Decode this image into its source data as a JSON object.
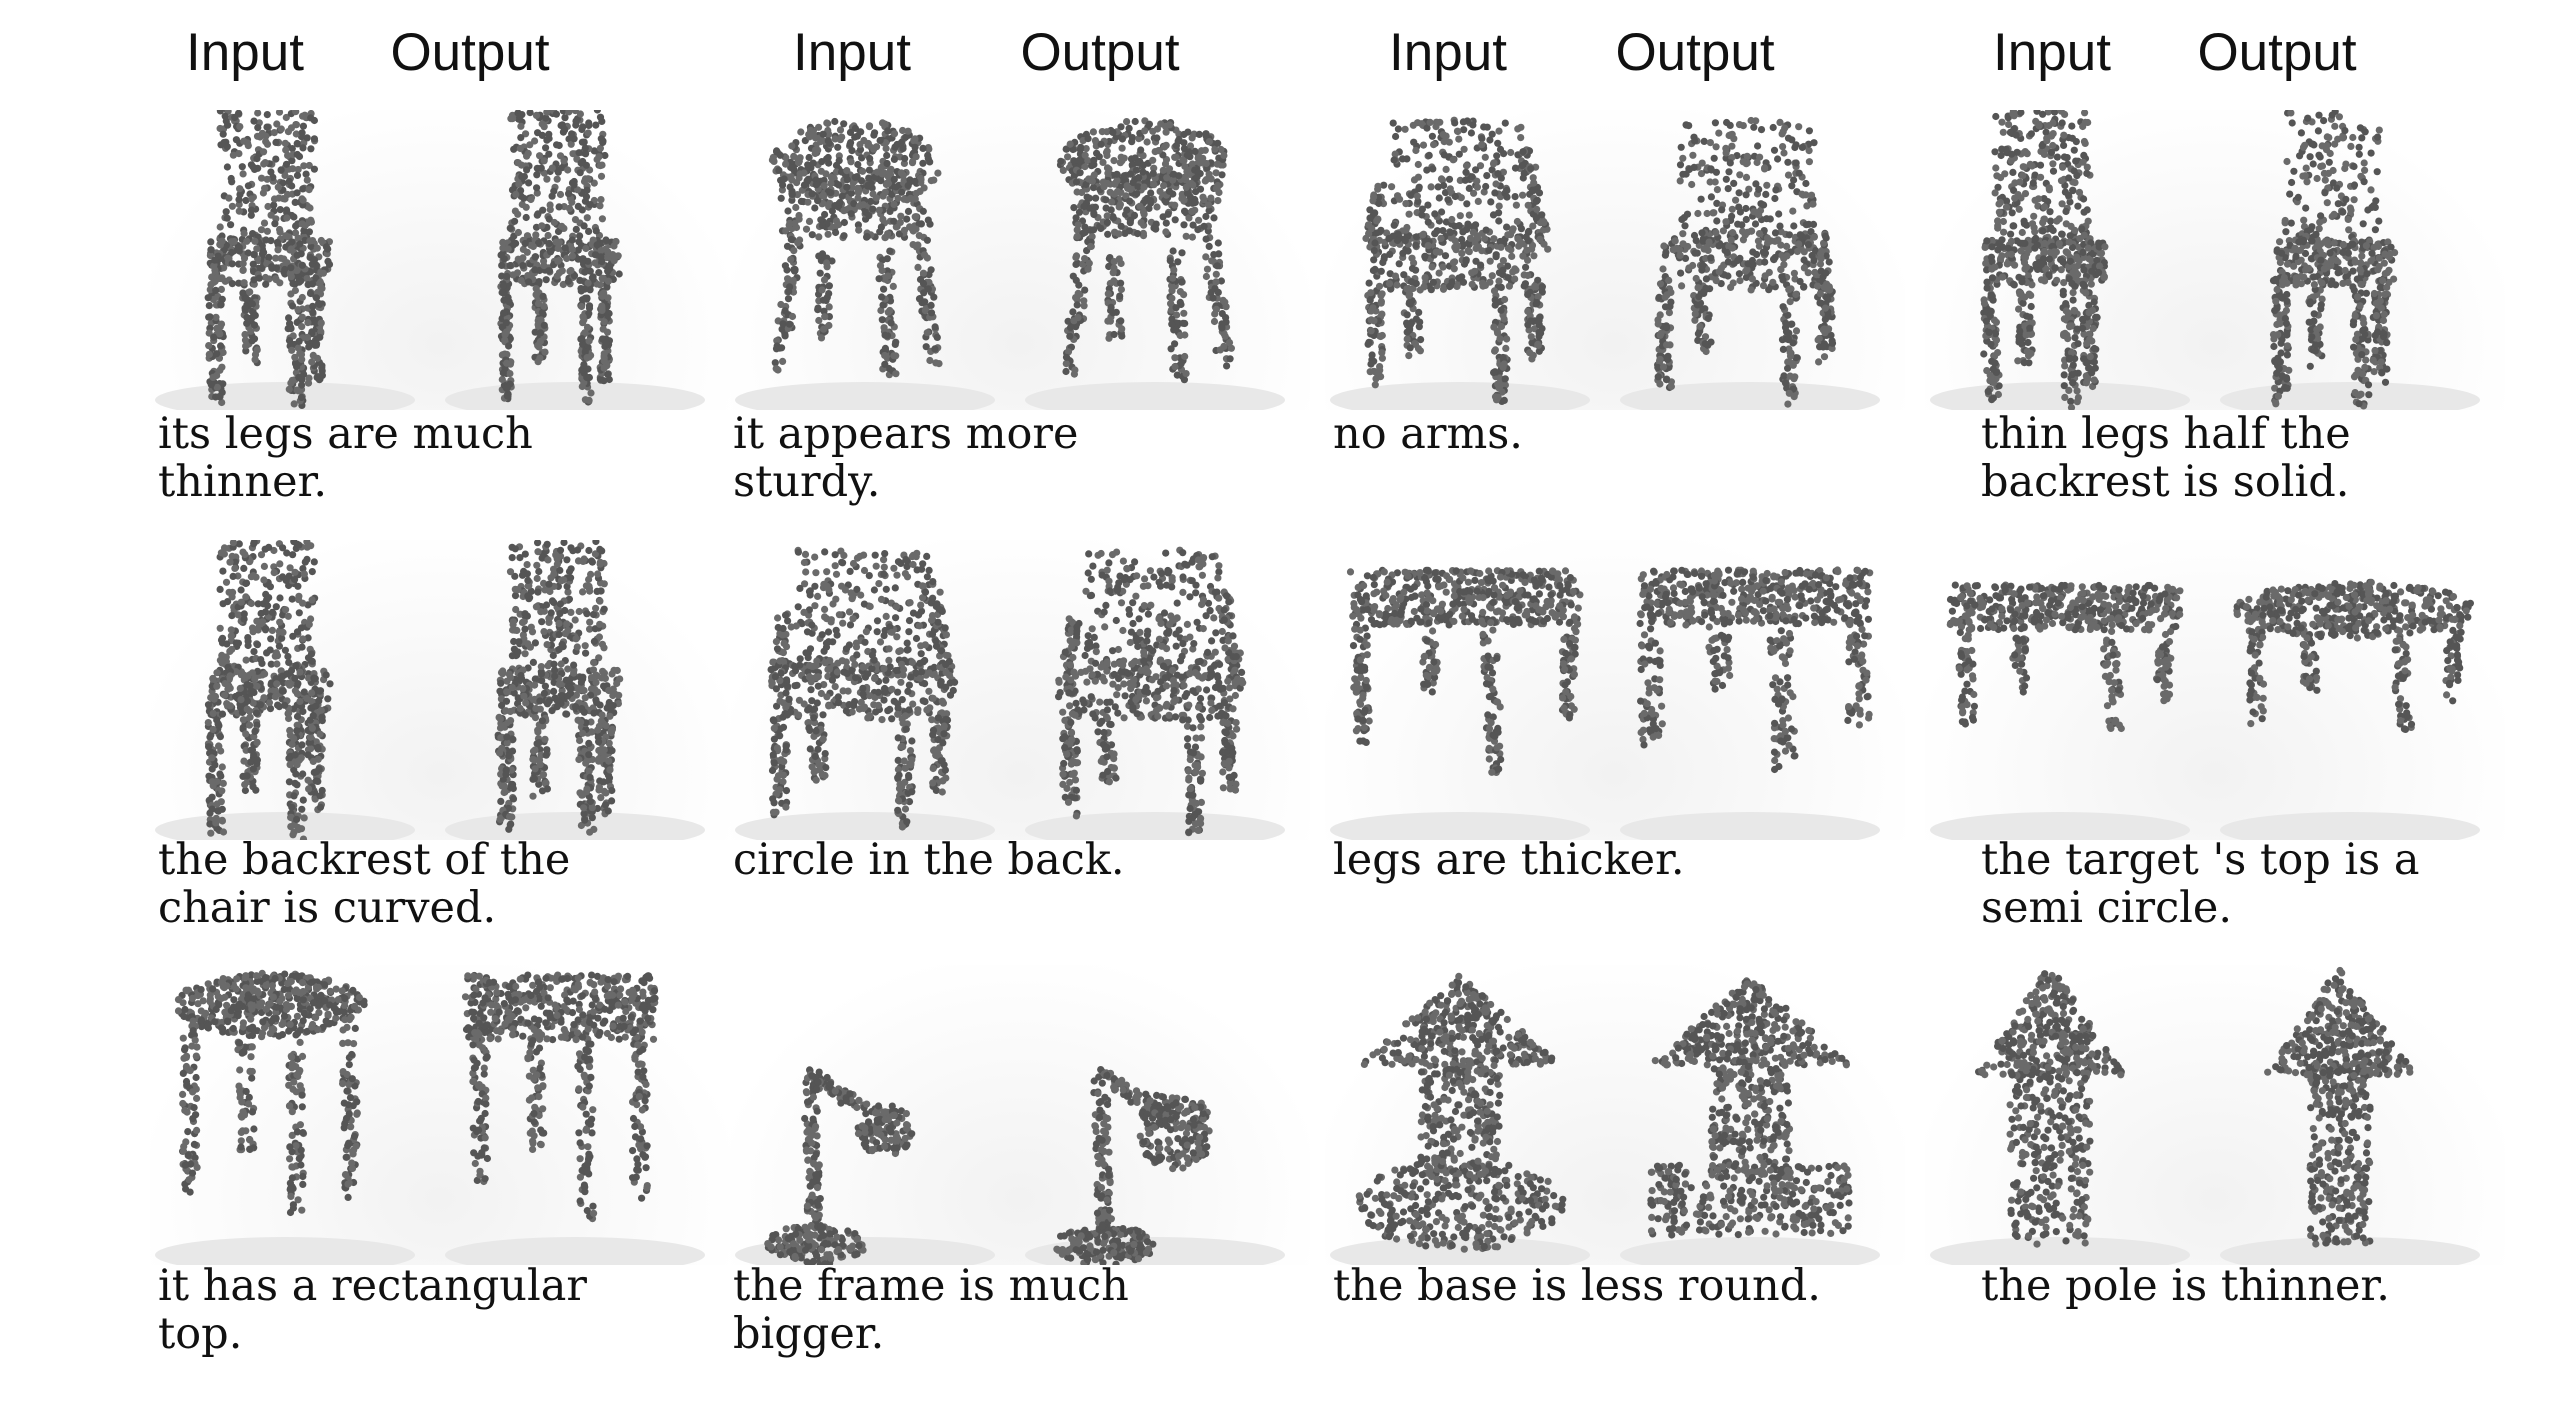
{
  "figure": {
    "columns": [
      {
        "input_label": "Input",
        "output_label": "Output"
      },
      {
        "input_label": "Input",
        "output_label": "Output"
      },
      {
        "input_label": "Input",
        "output_label": "Output"
      },
      {
        "input_label": "Input",
        "output_label": "Output"
      }
    ],
    "rows": [
      [
        {
          "caption": "its legs are much\nthinner.",
          "input_shape": "chair",
          "output_shape": "chair-thin-legs"
        },
        {
          "caption": "it appears more\nsturdy.",
          "input_shape": "round-chair",
          "output_shape": "round-chair-sturdy"
        },
        {
          "caption": "no arms.",
          "input_shape": "armchair",
          "output_shape": "chair-no-arms"
        },
        {
          "caption": "thin legs half the\nbackrest is solid.",
          "input_shape": "chair",
          "output_shape": "chair-half-backrest"
        }
      ],
      [
        {
          "caption": "the backrest of the\nchair is curved.",
          "input_shape": "chair",
          "output_shape": "chair-curved-back"
        },
        {
          "caption": "circle in the back.",
          "input_shape": "armchair",
          "output_shape": "armchair-circle-back"
        },
        {
          "caption": "legs are thicker.",
          "input_shape": "square-table",
          "output_shape": "square-table-thick-legs"
        },
        {
          "caption": "the target 's top is a\nsemi circle.",
          "input_shape": "bench-table",
          "output_shape": "bench-table-rounded"
        }
      ],
      [
        {
          "caption": "it has a rectangular\ntop.",
          "input_shape": "round-table",
          "output_shape": "rect-table"
        },
        {
          "caption": "the frame is much\nbigger.",
          "input_shape": "desk-lamp",
          "output_shape": "desk-lamp-big"
        },
        {
          "caption": "the base is less round.",
          "input_shape": "mushroom-lamp",
          "output_shape": "mushroom-lamp-flat-base"
        },
        {
          "caption": "the pole is thinner.",
          "input_shape": "pole-lamp",
          "output_shape": "pole-lamp-thin"
        }
      ]
    ]
  }
}
